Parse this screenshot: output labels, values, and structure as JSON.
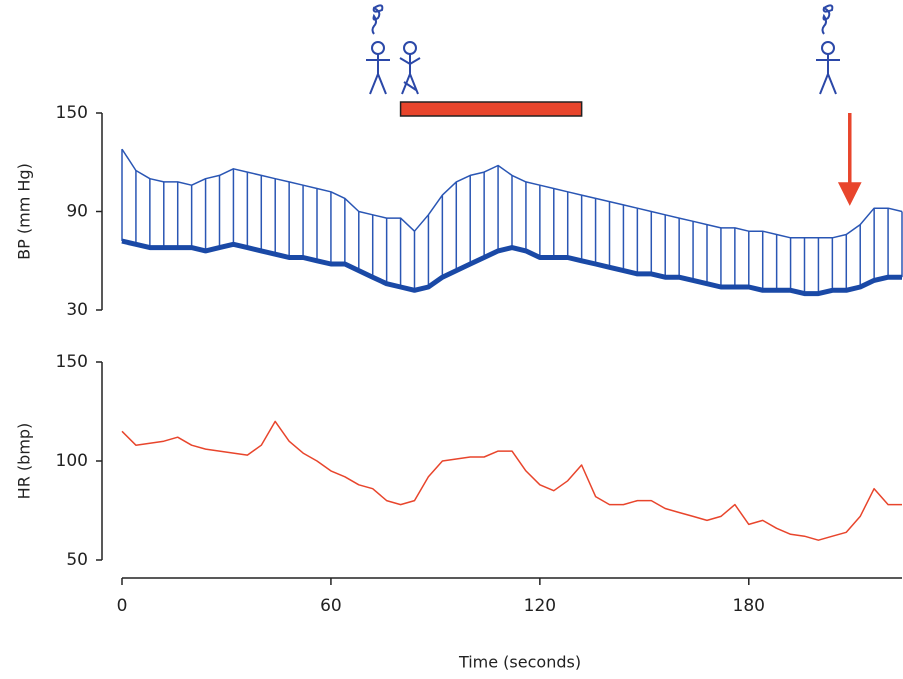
{
  "chart_data": [
    {
      "type": "line",
      "ylabel": "BP (mm Hg)",
      "xlim": [
        0,
        224
      ],
      "ylim": [
        30,
        150
      ],
      "yticks": [
        30,
        90,
        150
      ],
      "x": [
        0,
        4,
        8,
        12,
        16,
        20,
        24,
        28,
        32,
        36,
        40,
        44,
        48,
        52,
        56,
        60,
        64,
        68,
        72,
        76,
        80,
        84,
        88,
        92,
        96,
        100,
        104,
        108,
        112,
        116,
        120,
        124,
        128,
        132,
        136,
        140,
        144,
        148,
        152,
        156,
        160,
        164,
        168,
        172,
        176,
        180,
        184,
        188,
        192,
        196,
        200,
        204,
        208,
        212,
        216,
        220,
        224
      ],
      "series": [
        {
          "color": "#2a56b4",
          "values": [
            128,
            115,
            110,
            108,
            108,
            106,
            110,
            112,
            116,
            114,
            112,
            110,
            108,
            106,
            104,
            102,
            98,
            90,
            88,
            86,
            86,
            78,
            88,
            100,
            108,
            112,
            114,
            118,
            112,
            108,
            106,
            104,
            102,
            100,
            98,
            96,
            94,
            92,
            90,
            88,
            86,
            84,
            82,
            80,
            80,
            78,
            78,
            76,
            74,
            74,
            74,
            74,
            76,
            82,
            92,
            92,
            90
          ]
        },
        {
          "color": "#1a49a6",
          "values": [
            72,
            70,
            68,
            68,
            68,
            68,
            66,
            68,
            70,
            68,
            66,
            64,
            62,
            62,
            60,
            58,
            58,
            54,
            50,
            46,
            44,
            42,
            44,
            50,
            54,
            58,
            62,
            66,
            68,
            66,
            62,
            62,
            62,
            60,
            58,
            56,
            54,
            52,
            52,
            50,
            50,
            48,
            46,
            44,
            44,
            44,
            42,
            42,
            42,
            40,
            40,
            42,
            42,
            44,
            48,
            50,
            50
          ]
        }
      ],
      "annotations": {
        "span": [
          80,
          132
        ],
        "span_color": "#e8452c",
        "arrow_x": 209,
        "arrow_color": "#e8452c"
      }
    },
    {
      "type": "line",
      "ylabel": "HR (bmp)",
      "xlabel": "Time (seconds)",
      "xlim": [
        0,
        224
      ],
      "xticks": [
        0,
        60,
        120,
        180
      ],
      "ylim": [
        50,
        150
      ],
      "yticks": [
        50,
        100,
        150
      ],
      "x": [
        0,
        4,
        8,
        12,
        16,
        20,
        24,
        28,
        32,
        36,
        40,
        44,
        48,
        52,
        56,
        60,
        64,
        68,
        72,
        76,
        80,
        84,
        88,
        92,
        96,
        100,
        104,
        108,
        112,
        116,
        120,
        124,
        128,
        132,
        136,
        140,
        144,
        148,
        152,
        156,
        160,
        164,
        168,
        172,
        176,
        180,
        184,
        188,
        192,
        196,
        200,
        204,
        208,
        212,
        216,
        220,
        224
      ],
      "series": [
        {
          "color": "#e8452c",
          "values": [
            115,
            108,
            109,
            110,
            112,
            108,
            106,
            105,
            104,
            103,
            108,
            120,
            110,
            104,
            100,
            95,
            92,
            88,
            86,
            80,
            78,
            80,
            92,
            100,
            101,
            102,
            102,
            105,
            105,
            95,
            88,
            85,
            90,
            98,
            82,
            78,
            78,
            80,
            80,
            76,
            74,
            72,
            70,
            72,
            78,
            68,
            70,
            66,
            63,
            62,
            60,
            62,
            64,
            72,
            86,
            78,
            78
          ]
        }
      ]
    }
  ]
}
